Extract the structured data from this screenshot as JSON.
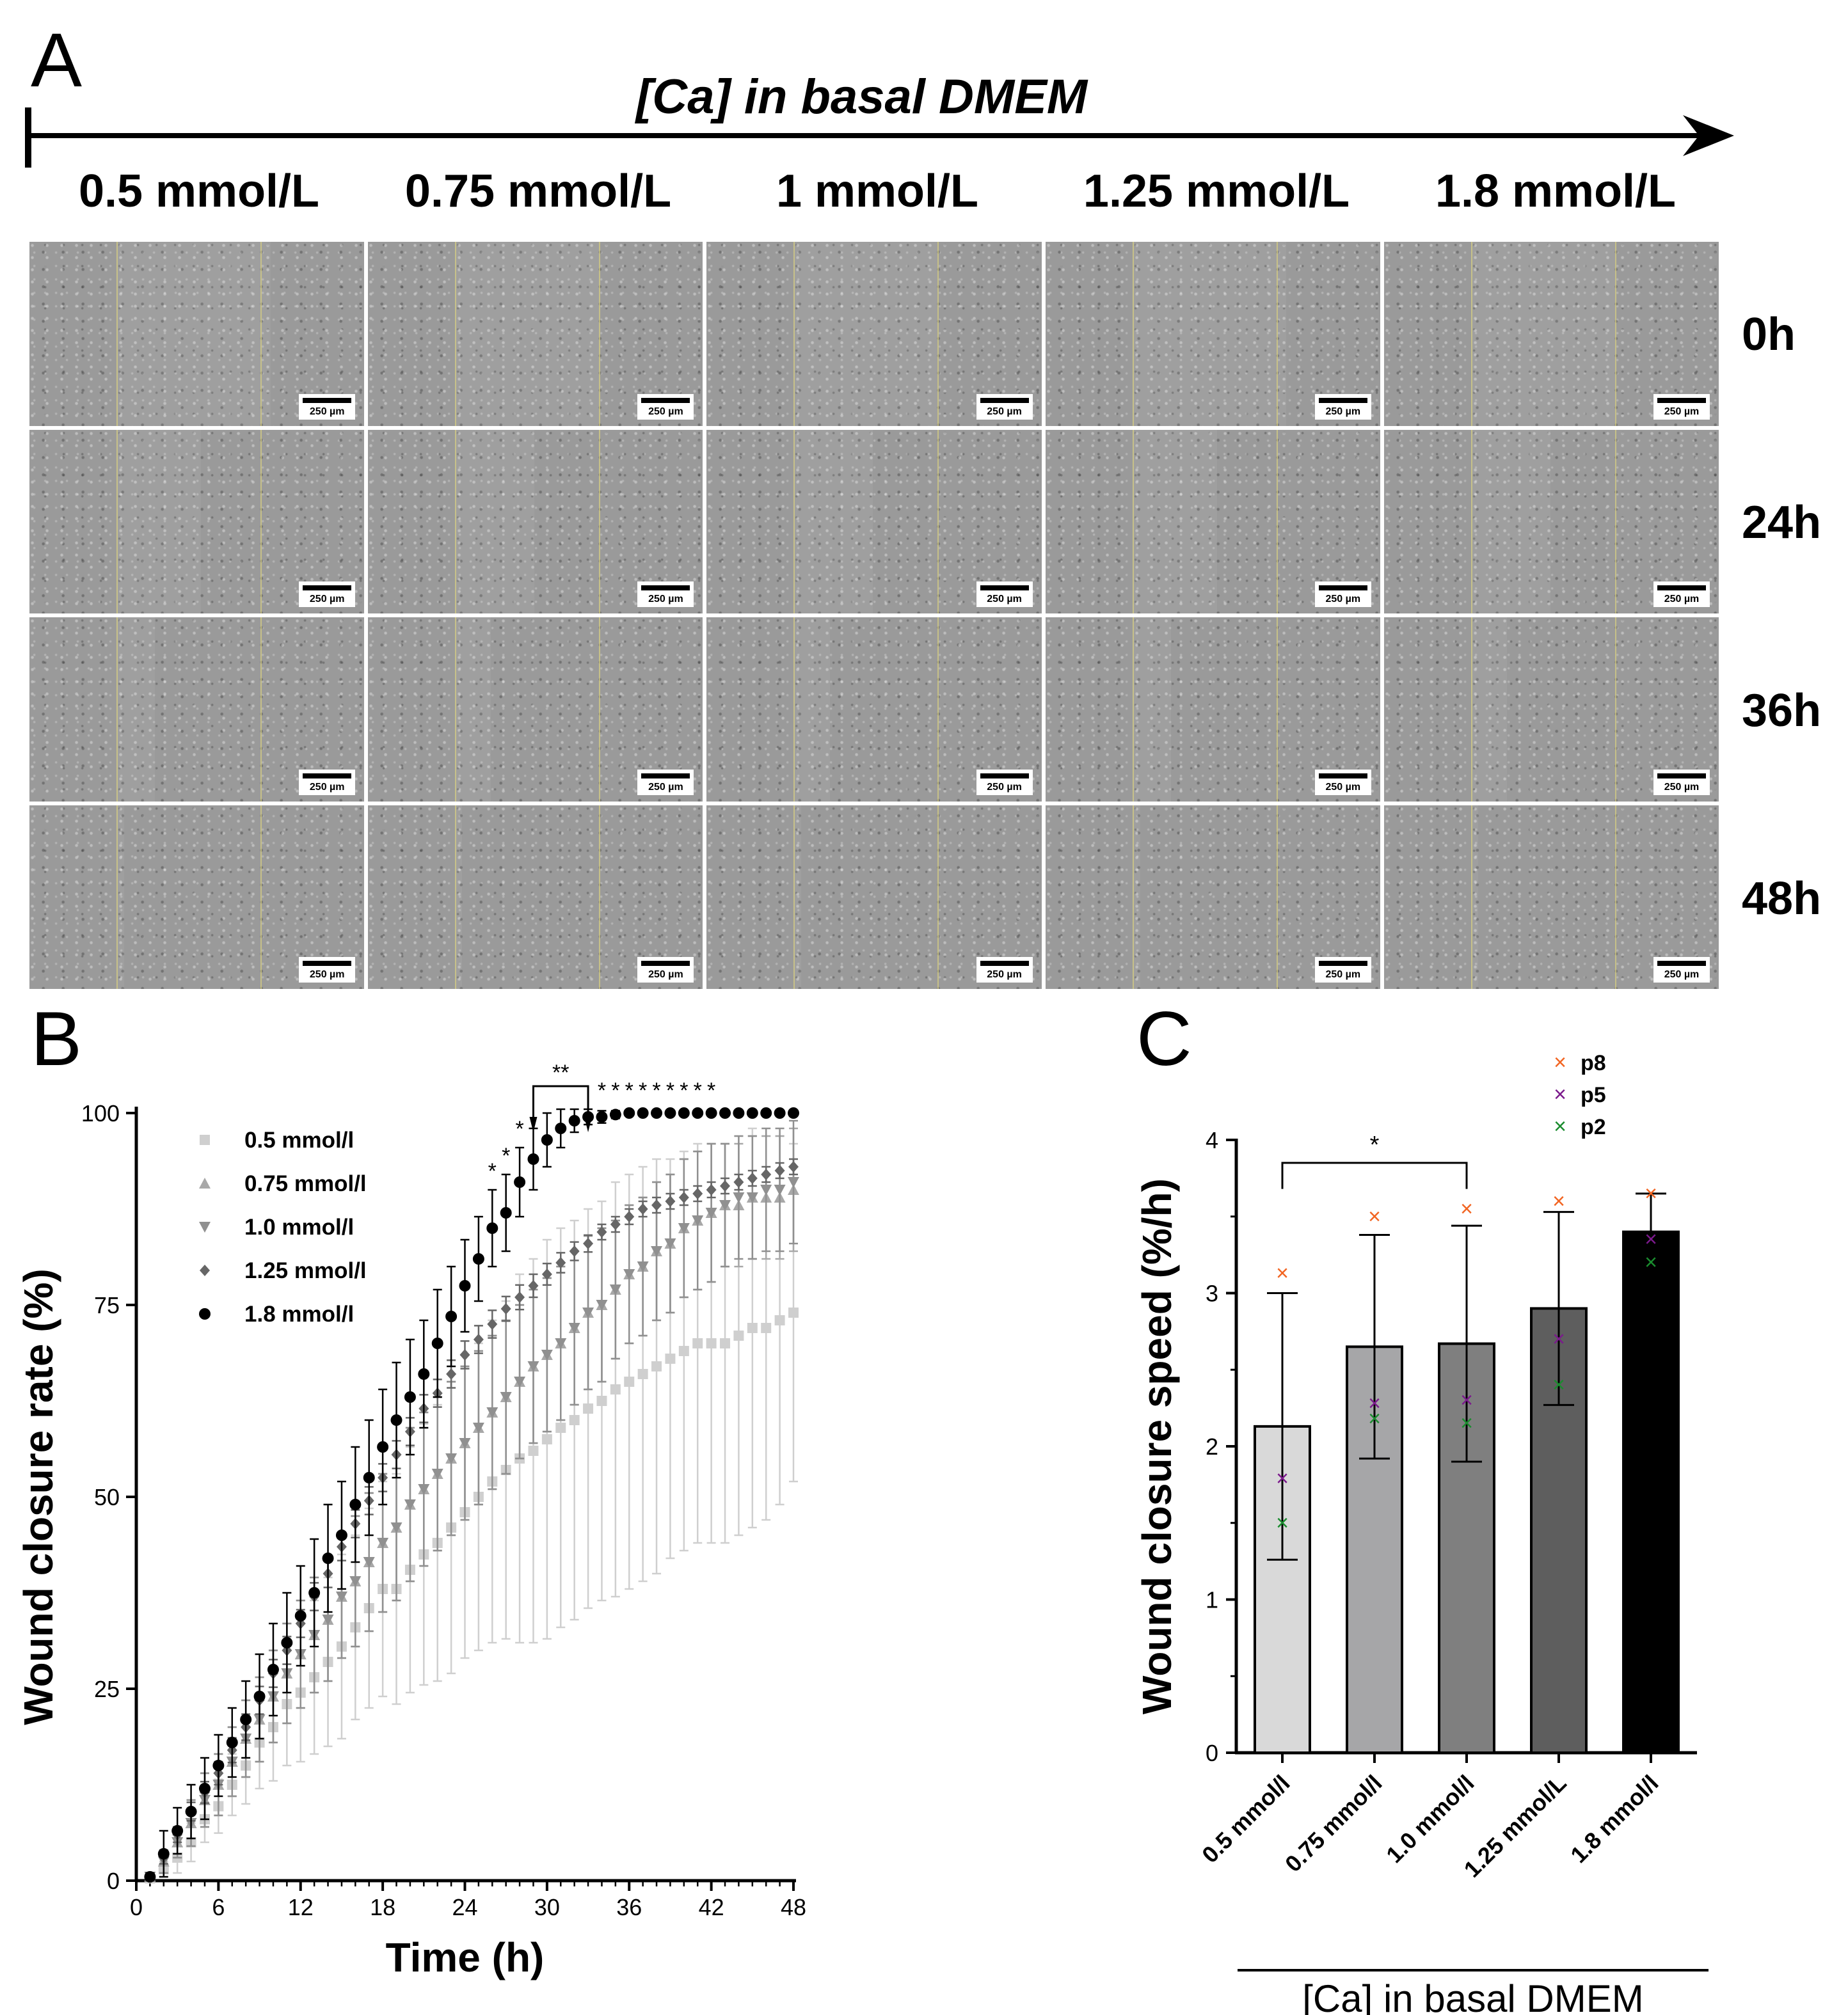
{
  "panel_a": {
    "label": "A",
    "axis_title": "[Ca] in basal DMEM",
    "concentrations": [
      "0.5 mmol/L",
      "0.75 mmol/L",
      "1 mmol/L",
      "1.25 mmol/L",
      "1.8 mmol/L"
    ],
    "timepoints": [
      "0h",
      "24h",
      "36h",
      "48h"
    ],
    "scale_bar": "250 µm"
  },
  "chart_data": [
    {
      "type": "scatter",
      "panel_label": "B",
      "title": "",
      "xlabel": "Time (h)",
      "ylabel": "Wound closure rate (%)",
      "xlim": [
        0,
        48
      ],
      "ylim": [
        0,
        100
      ],
      "xticks": [
        0,
        6,
        12,
        18,
        24,
        30,
        36,
        42,
        48
      ],
      "yticks": [
        0,
        25,
        50,
        75,
        100
      ],
      "legend_position": "top-left",
      "significance": [
        {
          "label": "*",
          "x": 26
        },
        {
          "label": "*",
          "x": 27
        },
        {
          "label": "*",
          "x": 28
        },
        {
          "label": "**",
          "x_from": 29,
          "x_to": 33
        },
        {
          "label": "*",
          "x": 34
        },
        {
          "label": "*",
          "x": 35
        },
        {
          "label": "*",
          "x": 36
        },
        {
          "label": "*",
          "x": 37
        },
        {
          "label": "*",
          "x": 38
        },
        {
          "label": "*",
          "x": 39
        },
        {
          "label": "*",
          "x": 40
        },
        {
          "label": "*",
          "x": 41
        },
        {
          "label": "*",
          "x": 42
        }
      ],
      "series": [
        {
          "name": "0.5 mmol/l",
          "marker": "square",
          "color": "#cfcfcf",
          "x": [
            1,
            2,
            3,
            4,
            5,
            6,
            7,
            8,
            9,
            10,
            11,
            12,
            13,
            14,
            15,
            16,
            17,
            18,
            19,
            20,
            21,
            22,
            23,
            24,
            25,
            26,
            27,
            28,
            29,
            30,
            31,
            32,
            33,
            34,
            35,
            36,
            37,
            38,
            39,
            40,
            41,
            42,
            43,
            44,
            45,
            46,
            47,
            48
          ],
          "y": [
            0.3,
            1.5,
            3,
            5,
            8,
            9.7,
            12.5,
            15,
            18,
            20,
            23,
            24.5,
            26.5,
            28.5,
            30.5,
            33,
            35.5,
            38,
            38,
            40.5,
            42.5,
            44,
            46,
            48,
            50,
            52,
            53.5,
            55,
            56,
            57.5,
            59,
            60,
            61.5,
            62.5,
            64,
            65,
            66,
            67,
            68,
            69,
            70,
            70,
            70,
            71,
            72,
            72,
            73,
            74
          ],
          "err": [
            0.5,
            1,
            2,
            2.5,
            3,
            3.5,
            4,
            5,
            6,
            7,
            8,
            9,
            10,
            11,
            12,
            12,
            13,
            14,
            15,
            16,
            17,
            18,
            19,
            19,
            20,
            21,
            22,
            24,
            25,
            26,
            26,
            26,
            26,
            26,
            27,
            27,
            27,
            27,
            26,
            26,
            26,
            26,
            26,
            26,
            26,
            25,
            24,
            22
          ]
        },
        {
          "name": "0.75 mmol/l",
          "marker": "triangle-up",
          "color": "#a8a8a8",
          "x": [
            1,
            2,
            3,
            4,
            5,
            6,
            7,
            8,
            9,
            10,
            11,
            12,
            13,
            14,
            15,
            16,
            17,
            18,
            19,
            20,
            21,
            22,
            23,
            24,
            25,
            26,
            27,
            28,
            29,
            30,
            31,
            32,
            33,
            34,
            35,
            36,
            37,
            38,
            39,
            40,
            41,
            42,
            43,
            44,
            45,
            46,
            47,
            48
          ],
          "y": [
            0.5,
            2.5,
            5,
            7.5,
            10.5,
            12.5,
            15.5,
            18.5,
            21,
            24,
            27,
            29.5,
            32,
            34,
            37,
            39,
            41.5,
            44,
            46,
            49,
            51,
            53,
            55,
            57,
            59,
            61,
            63,
            65,
            67,
            68.5,
            70,
            72,
            74,
            75,
            77,
            79,
            80,
            82,
            83,
            85,
            86,
            87,
            88,
            88,
            89,
            89,
            89,
            90
          ],
          "err": [
            0.5,
            1.5,
            2,
            3,
            3.5,
            4,
            4.5,
            5,
            5.5,
            6,
            6.5,
            7,
            7.5,
            8,
            8,
            8.5,
            9,
            9,
            9.5,
            10,
            10,
            10,
            10,
            10,
            10,
            10,
            10,
            10,
            10,
            10,
            10,
            10,
            10,
            10,
            9,
            9,
            9,
            9,
            9,
            9,
            9,
            9,
            8,
            8,
            8,
            8,
            8,
            8
          ]
        },
        {
          "name": "1.0 mmol/l",
          "marker": "triangle-down",
          "color": "#909090",
          "x": [
            1,
            2,
            3,
            4,
            5,
            6,
            7,
            8,
            9,
            10,
            11,
            12,
            13,
            14,
            15,
            16,
            17,
            18,
            19,
            20,
            21,
            22,
            23,
            24,
            25,
            26,
            27,
            28,
            29,
            30,
            31,
            32,
            33,
            34,
            35,
            36,
            37,
            38,
            39,
            40,
            41,
            42,
            43,
            44,
            45,
            46,
            47,
            48
          ],
          "y": [
            0.5,
            2.5,
            5,
            7.5,
            10.5,
            12.5,
            15.5,
            18.5,
            21,
            24,
            27,
            29.5,
            32,
            34,
            37,
            39,
            41.5,
            44,
            46,
            49,
            51,
            53,
            55,
            57,
            59,
            61,
            63,
            65,
            67,
            68.5,
            70,
            72,
            74,
            75,
            77,
            79,
            80,
            82,
            83,
            85,
            86,
            87,
            88,
            89,
            89,
            90,
            90,
            91
          ],
          "err": [
            0.5,
            1.5,
            2,
            3,
            3.5,
            4,
            4.5,
            5,
            5.5,
            6,
            6.5,
            7,
            7.5,
            8,
            8,
            8.5,
            9,
            9,
            9.5,
            10,
            10,
            10,
            10,
            10,
            10,
            10,
            10,
            10,
            10,
            10,
            10,
            10,
            10,
            10,
            9,
            9,
            9,
            9,
            9,
            9,
            9,
            9,
            8,
            8,
            8,
            8,
            8,
            8
          ]
        },
        {
          "name": "1.25 mmol/l",
          "marker": "diamond",
          "color": "#666666",
          "x": [
            1,
            2,
            3,
            4,
            5,
            6,
            7,
            8,
            9,
            10,
            11,
            12,
            13,
            14,
            15,
            16,
            17,
            18,
            19,
            20,
            21,
            22,
            23,
            24,
            25,
            26,
            27,
            28,
            29,
            30,
            31,
            32,
            33,
            34,
            35,
            36,
            37,
            38,
            39,
            40,
            41,
            42,
            43,
            44,
            45,
            46,
            47,
            48
          ],
          "y": [
            0.5,
            3,
            6,
            9,
            11.5,
            14,
            17,
            20,
            23.5,
            27,
            30,
            33.5,
            37,
            40,
            43.5,
            46.5,
            49.5,
            52.5,
            55.5,
            58.5,
            61.5,
            63.5,
            66,
            68.5,
            70.5,
            72.5,
            74.5,
            76,
            77.5,
            79,
            80.5,
            82,
            83,
            84.5,
            85.5,
            86.5,
            87.5,
            88,
            88.5,
            89,
            89.5,
            90,
            90.5,
            91,
            91.5,
            92,
            92.5,
            93
          ],
          "err": [
            0.3,
            0.8,
            1,
            1.2,
            1.4,
            1.5,
            1.6,
            1.7,
            1.8,
            1.8,
            1.8,
            1.8,
            1.8,
            1.8,
            1.8,
            1.8,
            1.8,
            1.8,
            1.8,
            1.8,
            1.8,
            1.8,
            1.8,
            1.8,
            1.8,
            1.8,
            1.6,
            1.6,
            1.5,
            1.4,
            1.3,
            1.2,
            1.1,
            1,
            1,
            1,
            1,
            1,
            1,
            1,
            1,
            1,
            1,
            1,
            1,
            1,
            1,
            1
          ]
        },
        {
          "name": "1.8 mmol/l",
          "marker": "circle",
          "color": "#000000",
          "x": [
            1,
            2,
            3,
            4,
            5,
            6,
            7,
            8,
            9,
            10,
            11,
            12,
            13,
            14,
            15,
            16,
            17,
            18,
            19,
            20,
            21,
            22,
            23,
            24,
            25,
            26,
            27,
            28,
            29,
            30,
            31,
            32,
            33,
            34,
            35,
            36,
            37,
            38,
            39,
            40,
            41,
            42,
            43,
            44,
            45,
            46,
            47,
            48
          ],
          "y": [
            0.5,
            3.5,
            6.5,
            9,
            12,
            15,
            18,
            21,
            24,
            27.5,
            31,
            34.5,
            37.5,
            42,
            45,
            49,
            52.5,
            56.5,
            60,
            63,
            66,
            70,
            73.5,
            77.5,
            81,
            85,
            87,
            91,
            94,
            96.5,
            98,
            99,
            99.5,
            99.5,
            99.8,
            100,
            100,
            100,
            100,
            100,
            100,
            100,
            100,
            100,
            100,
            100,
            100,
            100
          ],
          "err": [
            0.5,
            3,
            3,
            3.5,
            4,
            4,
            4.5,
            5,
            5.5,
            6,
            6.5,
            6.5,
            7,
            7,
            7,
            7.5,
            7.5,
            7.5,
            7.5,
            7.5,
            7,
            7,
            6.5,
            6,
            5.5,
            5,
            5,
            4.5,
            4,
            3.5,
            2.5,
            1.5,
            1,
            0.8,
            0.5,
            0.3,
            0.2,
            0.2,
            0.2,
            0.2,
            0.2,
            0.2,
            0.2,
            0.2,
            0.2,
            0.2,
            0.2,
            0.2
          ]
        }
      ]
    },
    {
      "type": "bar",
      "panel_label": "C",
      "title": "",
      "xlabel": "[Ca] in basal DMEM",
      "ylabel": "Wound closure speed (%/h)",
      "ylim": [
        0,
        4
      ],
      "yticks": [
        0,
        1,
        2,
        3,
        4
      ],
      "categories": [
        "0.5 mmol/l",
        "0.75 mmol/l",
        "1.0 mmol/l",
        "1.25 mmol/L",
        "1.8 mmol/l"
      ],
      "values": [
        2.13,
        2.65,
        2.67,
        2.9,
        3.4
      ],
      "err": [
        0.87,
        0.73,
        0.77,
        0.63,
        0.25
      ],
      "bar_colors": [
        "#d9d9d9",
        "#a6a6a8",
        "#7f7f7f",
        "#5e5e5e",
        "#000000"
      ],
      "legend_position": "top-right",
      "passages": [
        {
          "name": "p8",
          "color": "#f26522",
          "values": [
            3.13,
            3.5,
            3.55,
            3.6,
            3.65
          ]
        },
        {
          "name": "p5",
          "color": "#7b1a8c",
          "values": [
            1.79,
            2.28,
            2.3,
            2.7,
            3.35
          ]
        },
        {
          "name": "p2",
          "color": "#1a8c2e",
          "values": [
            1.5,
            2.18,
            2.15,
            2.4,
            3.2
          ]
        }
      ],
      "significance": [
        {
          "label": "*",
          "from": "0.5 mmol/l",
          "to": "1.0 mmol/l"
        }
      ]
    }
  ]
}
